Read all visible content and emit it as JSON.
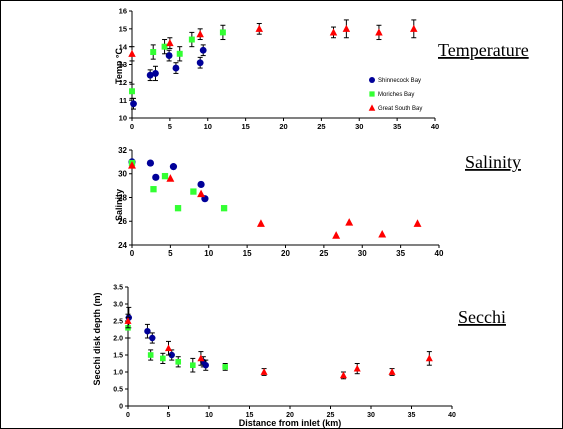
{
  "colors": {
    "shinnecock": "#000099",
    "moriches": "#33ff33",
    "greatsouth": "#ff0000"
  },
  "legend": {
    "placement": "panel-1-lower-right",
    "entries": [
      {
        "name": "Shinnecock Bay",
        "marker": "circle"
      },
      {
        "name": "Moriches Bay",
        "marker": "square"
      },
      {
        "name": "Great South Bay",
        "marker": "triangle"
      }
    ]
  },
  "chart_data": [
    {
      "type": "scatter",
      "panel_title": "Temperature",
      "xlabel": "",
      "ylabel": "Temp °C",
      "xlim": [
        0,
        40
      ],
      "ylim": [
        10,
        16
      ],
      "xticks": [
        0,
        5,
        10,
        15,
        20,
        25,
        30,
        35,
        40
      ],
      "yticks": [
        10,
        11,
        12,
        13,
        14,
        15,
        16
      ],
      "error_bars": true,
      "series": [
        {
          "name": "Shinnecock Bay",
          "key": "shinnecock",
          "marker": "circle",
          "points": [
            [
              0.2,
              10.8,
              0.3
            ],
            [
              2.4,
              12.4,
              0.3
            ],
            [
              3.1,
              12.5,
              0.4
            ],
            [
              4.9,
              13.5,
              0.3
            ],
            [
              5.8,
              12.8,
              0.3
            ],
            [
              9.0,
              13.1,
              0.3
            ],
            [
              9.4,
              13.8,
              0.3
            ]
          ]
        },
        {
          "name": "Moriches Bay",
          "key": "moriches",
          "marker": "square",
          "points": [
            [
              0.0,
              11.5,
              0.4
            ],
            [
              2.8,
              13.7,
              0.4
            ],
            [
              4.3,
              14.0,
              0.4
            ],
            [
              6.3,
              13.6,
              0.4
            ],
            [
              7.9,
              14.4,
              0.4
            ],
            [
              12.0,
              14.8,
              0.4
            ]
          ]
        },
        {
          "name": "Great South Bay",
          "key": "greatsouth",
          "marker": "triangle",
          "points": [
            [
              0.0,
              13.6,
              0.4
            ],
            [
              5.0,
              14.2,
              0.3
            ],
            [
              9.0,
              14.7,
              0.3
            ],
            [
              16.8,
              15.0,
              0.3
            ],
            [
              26.6,
              14.8,
              0.3
            ],
            [
              28.3,
              15.0,
              0.5
            ],
            [
              32.6,
              14.8,
              0.4
            ],
            [
              37.2,
              15.0,
              0.5
            ]
          ]
        }
      ]
    },
    {
      "type": "scatter",
      "panel_title": "Salinity",
      "xlabel": "",
      "ylabel": "Salinity",
      "xlim": [
        0,
        40
      ],
      "ylim": [
        24,
        32
      ],
      "xticks": [
        0,
        5,
        10,
        15,
        20,
        25,
        30,
        35,
        40
      ],
      "yticks": [
        24,
        26,
        28,
        30,
        32
      ],
      "error_bars": false,
      "series": [
        {
          "name": "Shinnecock Bay",
          "key": "shinnecock",
          "marker": "circle",
          "points": [
            [
              0.0,
              31.0
            ],
            [
              2.4,
              30.9
            ],
            [
              3.1,
              29.7
            ],
            [
              5.4,
              30.6
            ],
            [
              9.0,
              29.1
            ],
            [
              9.5,
              27.9
            ]
          ]
        },
        {
          "name": "Moriches Bay",
          "key": "moriches",
          "marker": "square",
          "points": [
            [
              0.0,
              30.9
            ],
            [
              2.8,
              28.7
            ],
            [
              4.3,
              29.8
            ],
            [
              6.0,
              27.1
            ],
            [
              8.0,
              28.5
            ],
            [
              12.0,
              27.1
            ]
          ]
        },
        {
          "name": "Great South Bay",
          "key": "greatsouth",
          "marker": "triangle",
          "points": [
            [
              0.0,
              30.7
            ],
            [
              5.0,
              29.6
            ],
            [
              9.0,
              28.3
            ],
            [
              16.8,
              25.8
            ],
            [
              26.6,
              24.8
            ],
            [
              28.3,
              25.9
            ],
            [
              32.6,
              24.9
            ],
            [
              37.2,
              25.8
            ]
          ]
        }
      ]
    },
    {
      "type": "scatter",
      "panel_title": "Secchi",
      "xlabel": "Distance from inlet (km)",
      "ylabel": "Secchi disk depth (m)",
      "xlim": [
        0,
        40
      ],
      "ylim": [
        0,
        3.5
      ],
      "xticks": [
        0,
        5,
        10,
        15,
        20,
        25,
        30,
        35,
        40
      ],
      "yticks": [
        0,
        0.5,
        1.0,
        1.5,
        2.0,
        2.5,
        3.0,
        3.5
      ],
      "ytick_labels": [
        "0",
        "0.5",
        "1.0",
        "1.5",
        "2.0",
        "2.5",
        "3.0",
        "3.5"
      ],
      "error_bars": true,
      "series": [
        {
          "name": "Shinnecock Bay",
          "key": "shinnecock",
          "marker": "circle",
          "points": [
            [
              0.1,
              2.6,
              0.3
            ],
            [
              2.4,
              2.2,
              0.2
            ],
            [
              3.0,
              2.0,
              0.15
            ],
            [
              5.4,
              1.5,
              0.15
            ],
            [
              9.3,
              1.3,
              0.15
            ],
            [
              9.6,
              1.2,
              0.15
            ]
          ]
        },
        {
          "name": "Moriches Bay",
          "key": "moriches",
          "marker": "square",
          "points": [
            [
              0.0,
              2.3,
              0.3
            ],
            [
              2.8,
              1.5,
              0.15
            ],
            [
              4.3,
              1.4,
              0.15
            ],
            [
              6.2,
              1.3,
              0.15
            ],
            [
              8.0,
              1.2,
              0.2
            ],
            [
              12.0,
              1.15,
              0.1
            ]
          ]
        },
        {
          "name": "Great South Bay",
          "key": "greatsouth",
          "marker": "triangle",
          "points": [
            [
              0.0,
              2.5,
              0.2
            ],
            [
              5.0,
              1.7,
              0.2
            ],
            [
              9.0,
              1.4,
              0.2
            ],
            [
              16.8,
              1.0,
              0.1
            ],
            [
              26.6,
              0.9,
              0.1
            ],
            [
              28.3,
              1.1,
              0.15
            ],
            [
              32.6,
              1.0,
              0.1
            ],
            [
              37.2,
              1.4,
              0.2
            ]
          ]
        }
      ]
    }
  ]
}
